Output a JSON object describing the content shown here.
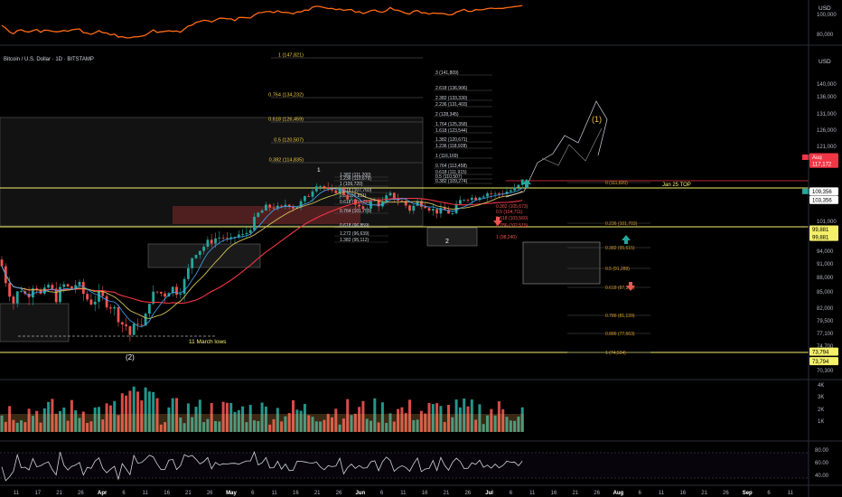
{
  "symbol_title": "Bitcoin / U.S. Dollar · 1D · BITSTAMP",
  "currency": "USD",
  "top_pane": {
    "currency": "USD",
    "ticks": [
      {
        "label": "100,000",
        "v": 100000
      },
      {
        "label": "80,000",
        "v": 80000
      }
    ]
  },
  "price_axis": [
    {
      "label": "140,000",
      "v": 140000
    },
    {
      "label": "136,000",
      "v": 136000
    },
    {
      "label": "131,000",
      "v": 131000
    },
    {
      "label": "126,000",
      "v": 126000
    },
    {
      "label": "121,000",
      "v": 121000
    },
    {
      "label": "117,000",
      "v": 117000
    },
    {
      "label": "101,000",
      "v": 101000
    },
    {
      "label": "97,000",
      "v": 97000
    },
    {
      "label": "94,000",
      "v": 94000
    },
    {
      "label": "91,000",
      "v": 91000
    },
    {
      "label": "88,000",
      "v": 88000
    },
    {
      "label": "85,000",
      "v": 85000
    },
    {
      "label": "82,000",
      "v": 82000
    },
    {
      "label": "79,500",
      "v": 79500
    },
    {
      "label": "77,100",
      "v": 77100
    },
    {
      "label": "74,700",
      "v": 74700
    },
    {
      "label": "70,300",
      "v": 70300
    }
  ],
  "price_badges": [
    {
      "label": "Aug",
      "v": 117800,
      "color": "#f23645",
      "text": "#ffffff"
    },
    {
      "label": "117,172",
      "v": 116000,
      "color": "#f23645",
      "text": "#ffffff"
    },
    {
      "label": "109,356",
      "v": 108800,
      "color": "#ffffff",
      "text": "#000000"
    },
    {
      "label": "103,356",
      "v": 106600,
      "color": "#ffffff",
      "text": "#000000"
    },
    {
      "label": "99,881",
      "v": 99100,
      "color": "#f5f06a",
      "text": "#000000"
    },
    {
      "label": "99,881",
      "v": 97400,
      "color": "#f5f06a",
      "text": "#000000"
    },
    {
      "label": "73,794",
      "v": 73700,
      "color": "#f5f06a",
      "text": "#000000"
    },
    {
      "label": "73,794",
      "v": 72000,
      "color": "#f5f06a",
      "text": "#000000"
    }
  ],
  "volume_axis": [
    "4K",
    "3K",
    "2K",
    "1K"
  ],
  "rsi_axis": [
    "80.00",
    "60.00",
    "40.00"
  ],
  "time_axis": [
    {
      "label": "11",
      "bold": false
    },
    {
      "label": "17",
      "bold": false
    },
    {
      "label": "21",
      "bold": false
    },
    {
      "label": "26",
      "bold": false
    },
    {
      "label": "Apr",
      "bold": true
    },
    {
      "label": "6",
      "bold": false
    },
    {
      "label": "11",
      "bold": false
    },
    {
      "label": "16",
      "bold": false
    },
    {
      "label": "21",
      "bold": false
    },
    {
      "label": "26",
      "bold": false
    },
    {
      "label": "May",
      "bold": true
    },
    {
      "label": "6",
      "bold": false
    },
    {
      "label": "11",
      "bold": false
    },
    {
      "label": "16",
      "bold": false
    },
    {
      "label": "21",
      "bold": false
    },
    {
      "label": "26",
      "bold": false
    },
    {
      "label": "Jun",
      "bold": true
    },
    {
      "label": "6",
      "bold": false
    },
    {
      "label": "11",
      "bold": false
    },
    {
      "label": "16",
      "bold": false
    },
    {
      "label": "21",
      "bold": false
    },
    {
      "label": "26",
      "bold": false
    },
    {
      "label": "Jul",
      "bold": true
    },
    {
      "label": "6",
      "bold": false
    },
    {
      "label": "11",
      "bold": false
    },
    {
      "label": "16",
      "bold": false
    },
    {
      "label": "21",
      "bold": false
    },
    {
      "label": "26",
      "bold": false
    },
    {
      "label": "Aug",
      "bold": true
    },
    {
      "label": "6",
      "bold": false
    },
    {
      "label": "11",
      "bold": false
    },
    {
      "label": "16",
      "bold": false
    },
    {
      "label": "21",
      "bold": false
    },
    {
      "label": "26",
      "bold": false
    },
    {
      "label": "Sep",
      "bold": true
    },
    {
      "label": "6",
      "bold": false
    },
    {
      "label": "11",
      "bold": false
    },
    {
      "label": "16",
      "bold": false
    }
  ],
  "fib_upper": [
    "1 (147,821)",
    "0.764 (134,232)",
    "0.618 (126,459)",
    "0.5 (120,507)",
    "0.382 (114,835)"
  ],
  "fib_ext": [
    "3 (141,809)",
    "2.618 (136,906)",
    "2.382 (133,330)",
    "2.236 (131,403)",
    "2 (128,345)",
    "1.764 (125,358)",
    "1.618 (123,544)",
    "1.382 (120,671)",
    "1.236 (118,928)",
    "1 (116,169)",
    "0.764 (113,458)",
    "0.618 (111,915)",
    "0.5 (110,507)",
    "0.382 (109,274)"
  ],
  "fib_mid": [
    "1.382 (111,200)",
    "1.236 (110,679)",
    "1 (109,720)",
    "0.618 (107,760)",
    "0.5 (106,811)",
    "0.618 (104,791)",
    "0.764 (101,759)",
    "0.618 (96,859)",
    "1.272 (96,639)",
    "1.382 (95,112)"
  ],
  "fib_small": [
    "0.382 (105,673)",
    "0.5 (104,711)",
    "0.618 (103,560)",
    "0.786 (102,515)",
    "1 (98,240)"
  ],
  "fib_right": [
    "0 (111,820)",
    "0.236 (101,703)",
    "0.382 (95,615)",
    "0.5 (91,289)",
    "0.618 (87,305)",
    "0.786 (81,139)",
    "0.886 (77,663)",
    "1 (74,524)"
  ],
  "annotations": {
    "jan25_top": "Jan 25 TOP",
    "march_lows": "11 March lows",
    "wave_1_label": "(1)",
    "wave_2_label": "(2)",
    "wave_small_1": "1",
    "wave_small_2": "2"
  },
  "colors": {
    "bull": "#26a69a",
    "bear": "#ef5350",
    "ma_red": "#f23645",
    "ma_yellow": "#d1c35a",
    "ma_blue": "#42a5f5",
    "orange_line": "#ff6a13",
    "level_yellow": "#f5f06a",
    "fib_wave": "#d59a2a"
  }
}
